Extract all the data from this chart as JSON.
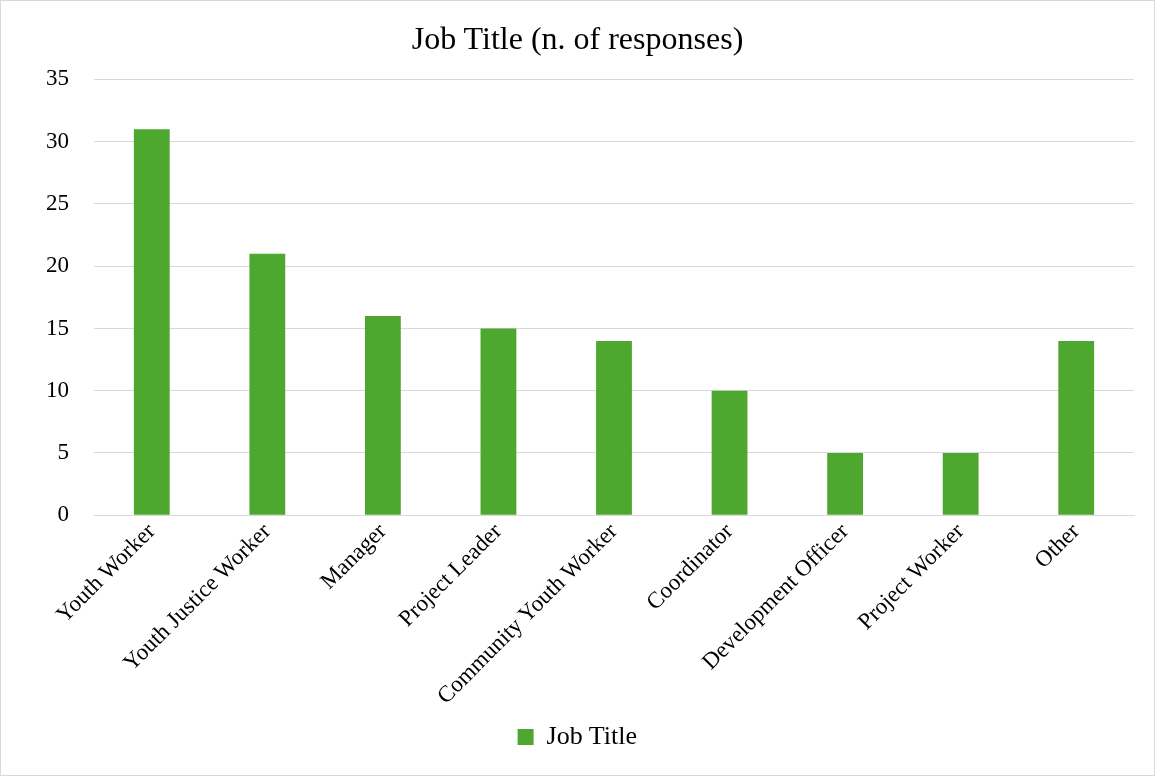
{
  "chart_data": {
    "type": "bar",
    "title": "Job Title (n. of responses)",
    "categories": [
      "Youth Worker",
      "Youth Justice Worker",
      "Manager",
      "Project Leader",
      "Community Youth Worker",
      "Coordinator",
      "Development Officer",
      "Project Worker",
      "Other"
    ],
    "series": [
      {
        "name": "Job Title",
        "color": "#4ea72e",
        "values": [
          31,
          21,
          16,
          15,
          14,
          10,
          5,
          5,
          14
        ]
      }
    ],
    "ylim": [
      0,
      35
    ],
    "yticks": [
      0,
      5,
      10,
      15,
      20,
      25,
      30,
      35
    ],
    "grid": "y",
    "legend": "bottom"
  }
}
